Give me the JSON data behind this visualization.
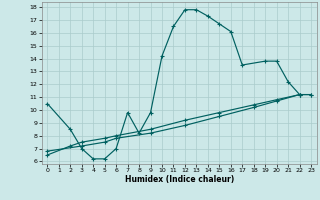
{
  "xlabel": "Humidex (Indice chaleur)",
  "background_color": "#cce8e8",
  "grid_color": "#aacccc",
  "line_color": "#006060",
  "xlim": [
    -0.5,
    23.5
  ],
  "ylim": [
    5.8,
    18.4
  ],
  "xticks": [
    0,
    1,
    2,
    3,
    4,
    5,
    6,
    7,
    8,
    9,
    10,
    11,
    12,
    13,
    14,
    15,
    16,
    17,
    18,
    19,
    20,
    21,
    22,
    23
  ],
  "yticks": [
    6,
    7,
    8,
    9,
    10,
    11,
    12,
    13,
    14,
    15,
    16,
    17,
    18
  ],
  "curve1_x": [
    0,
    2,
    3,
    4,
    5,
    6,
    7,
    8,
    9,
    10,
    11,
    12,
    13,
    14,
    15,
    16,
    17,
    19,
    20,
    21,
    22
  ],
  "curve1_y": [
    10.5,
    8.5,
    7.0,
    6.2,
    6.2,
    7.0,
    9.8,
    8.2,
    9.8,
    14.2,
    16.5,
    17.8,
    17.8,
    17.3,
    16.7,
    16.1,
    13.5,
    13.8,
    13.8,
    12.2,
    11.2
  ],
  "curve2_x": [
    0,
    2,
    3,
    5,
    6,
    9,
    12,
    15,
    18,
    20,
    22,
    23
  ],
  "curve2_y": [
    6.5,
    7.2,
    7.5,
    7.8,
    8.0,
    8.5,
    9.2,
    9.8,
    10.4,
    10.8,
    11.2,
    11.2
  ],
  "curve3_x": [
    0,
    3,
    5,
    6,
    9,
    12,
    15,
    18,
    20,
    22,
    23
  ],
  "curve3_y": [
    6.8,
    7.2,
    7.5,
    7.8,
    8.2,
    8.8,
    9.5,
    10.2,
    10.7,
    11.2,
    11.2
  ]
}
